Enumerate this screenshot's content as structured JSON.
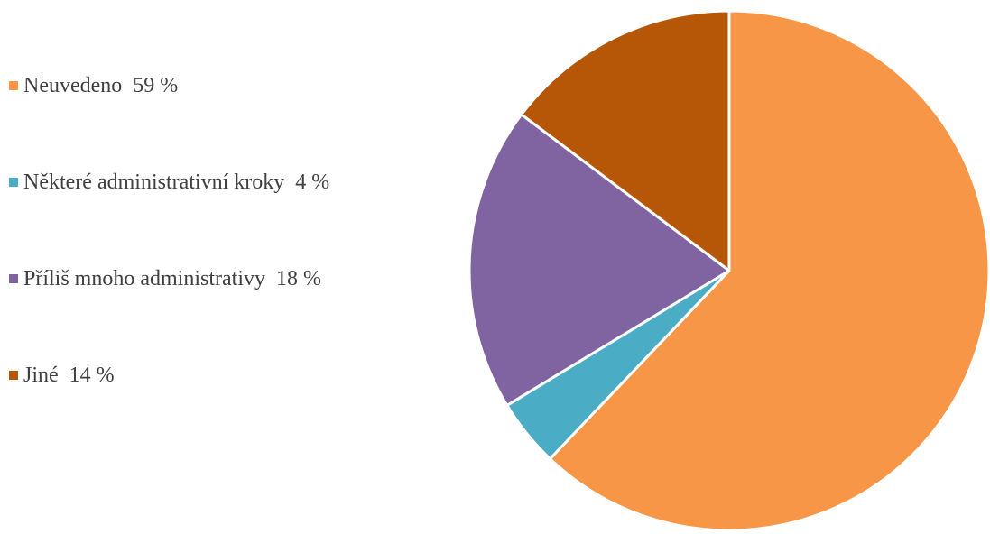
{
  "chart_data": {
    "type": "pie",
    "title": "",
    "start_angle": "12 o'clock",
    "direction": "clockwise",
    "legend_position": "left",
    "slice_border_color": "#ffffff",
    "slices": [
      {
        "label": "Neuvedeno",
        "value": 59,
        "value_label": "59 %",
        "color": "#F79646"
      },
      {
        "label": "Některé administrativní kroky",
        "value": 4,
        "value_label": "4 %",
        "color": "#4BACC6"
      },
      {
        "label": "Příliš mnoho administrativy",
        "value": 18,
        "value_label": "18 %",
        "color": "#8064A2"
      },
      {
        "label": "Jiné",
        "value": 14,
        "value_label": "14 %",
        "color": "#B65708"
      }
    ]
  }
}
